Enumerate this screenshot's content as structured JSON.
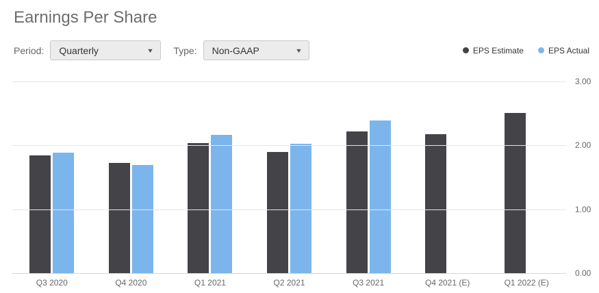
{
  "header": {
    "title": "Earnings Per Share"
  },
  "controls": {
    "period_label": "Period:",
    "period_value": "Quarterly",
    "type_label": "Type:",
    "type_value": "Non-GAAP",
    "caret": "▼"
  },
  "chart_data": {
    "type": "bar",
    "title": "Earnings Per Share",
    "categories": [
      "Q3 2020",
      "Q4 2020",
      "Q1 2021",
      "Q2 2021",
      "Q3 2021",
      "Q4 2021 (E)",
      "Q1 2022 (E)"
    ],
    "series": [
      {
        "name": "EPS Estimate",
        "color": "#434348",
        "values": [
          1.84,
          1.72,
          2.04,
          1.9,
          2.22,
          2.18,
          2.51
        ]
      },
      {
        "name": "EPS Actual",
        "color": "#7cb5ec",
        "values": [
          1.89,
          1.69,
          2.16,
          2.02,
          2.39,
          null,
          null
        ]
      }
    ],
    "ylim": [
      0,
      3
    ],
    "yticks": [
      {
        "value": 0,
        "label": "0.00"
      },
      {
        "value": 1,
        "label": "1.00"
      },
      {
        "value": 2,
        "label": "2.00"
      },
      {
        "value": 3,
        "label": "3.00"
      }
    ],
    "grid": true,
    "legend_position": "top-right",
    "ytick_side": "right",
    "colors": {
      "gridline": "#e6e6e6",
      "axis_line": "#ccd6eb",
      "tick_label": "#666666",
      "legend_text": "#333333"
    }
  }
}
